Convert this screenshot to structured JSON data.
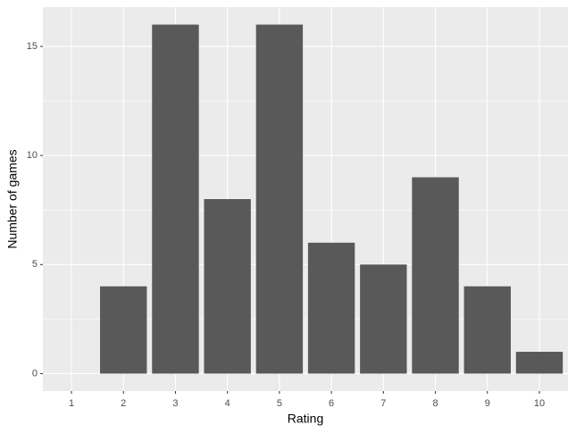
{
  "chart_data": {
    "type": "bar",
    "x_label": "Rating",
    "y_label": "Number of games",
    "categories": [
      "1",
      "2",
      "3",
      "4",
      "5",
      "6",
      "7",
      "8",
      "9",
      "10"
    ],
    "values": [
      0,
      4,
      16,
      8,
      16,
      6,
      5,
      9,
      4,
      1
    ],
    "color": "#595959",
    "ylim": [
      -0.8,
      16.8
    ],
    "yticks": [
      0,
      5,
      10,
      15
    ],
    "minor_yticks": [
      2.5,
      7.5,
      12.5
    ],
    "grid": true
  }
}
